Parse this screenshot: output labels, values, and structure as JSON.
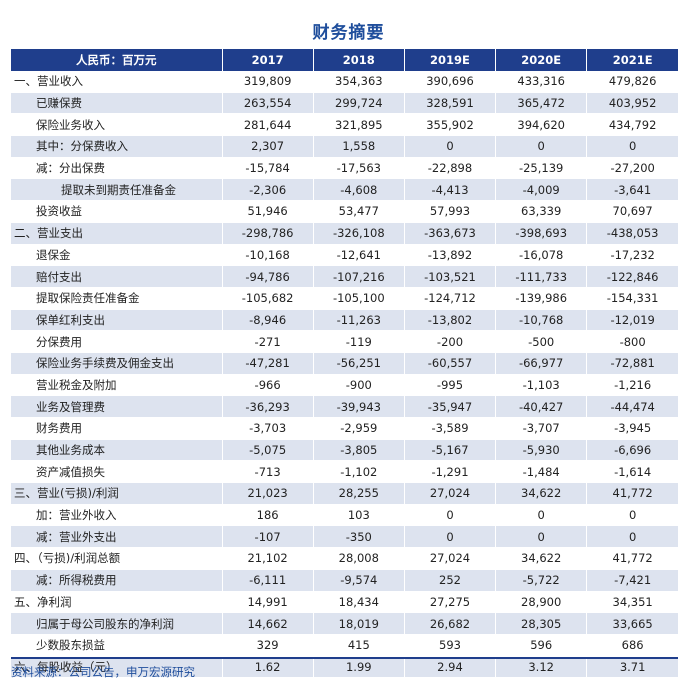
{
  "title": "财务摘要",
  "header": [
    "人民币：百万元",
    "2017",
    "2018",
    "2019E",
    "2020E",
    "2021E"
  ],
  "rows": [
    {
      "label": "一、营业收入",
      "values": [
        "319,809",
        "354,363",
        "390,696",
        "433,316",
        "479,826"
      ],
      "level": 0,
      "shaded": false
    },
    {
      "label": "已赚保费",
      "values": [
        "263,554",
        "299,724",
        "328,591",
        "365,472",
        "403,952"
      ],
      "level": 1,
      "shaded": true
    },
    {
      "label": "保险业务收入",
      "values": [
        "281,644",
        "321,895",
        "355,902",
        "394,620",
        "434,792"
      ],
      "level": 1,
      "shaded": false
    },
    {
      "label": "其中：分保费收入",
      "values": [
        "2,307",
        "1,558",
        "0",
        "0",
        "0"
      ],
      "level": 1,
      "shaded": true
    },
    {
      "label": "减：分出保费",
      "values": [
        "-15,784",
        "-17,563",
        "-22,898",
        "-25,139",
        "-27,200"
      ],
      "level": 1,
      "shaded": false
    },
    {
      "label": "提取未到期责任准备金",
      "values": [
        "-2,306",
        "-4,608",
        "-4,413",
        "-4,009",
        "-3,641"
      ],
      "level": 2,
      "shaded": true
    },
    {
      "label": "投资收益",
      "values": [
        "51,946",
        "53,477",
        "57,993",
        "63,339",
        "70,697"
      ],
      "level": 1,
      "shaded": false
    },
    {
      "label": "二、营业支出",
      "values": [
        "-298,786",
        "-326,108",
        "-363,673",
        "-398,693",
        "-438,053"
      ],
      "level": 0,
      "shaded": true
    },
    {
      "label": "退保金",
      "values": [
        "-10,168",
        "-12,641",
        "-13,892",
        "-16,078",
        "-17,232"
      ],
      "level": 1,
      "shaded": false
    },
    {
      "label": "赔付支出",
      "values": [
        "-94,786",
        "-107,216",
        "-103,521",
        "-111,733",
        "-122,846"
      ],
      "level": 1,
      "shaded": true
    },
    {
      "label": "提取保险责任准备金",
      "values": [
        "-105,682",
        "-105,100",
        "-124,712",
        "-139,986",
        "-154,331"
      ],
      "level": 1,
      "shaded": false
    },
    {
      "label": "保单红利支出",
      "values": [
        "-8,946",
        "-11,263",
        "-13,802",
        "-10,768",
        "-12,019"
      ],
      "level": 1,
      "shaded": true
    },
    {
      "label": "分保费用",
      "values": [
        "-271",
        "-119",
        "-200",
        "-500",
        "-800"
      ],
      "level": 1,
      "shaded": false
    },
    {
      "label": "保险业务手续费及佣金支出",
      "values": [
        "-47,281",
        "-56,251",
        "-60,557",
        "-66,977",
        "-72,881"
      ],
      "level": 1,
      "shaded": true
    },
    {
      "label": "营业税金及附加",
      "values": [
        "-966",
        "-900",
        "-995",
        "-1,103",
        "-1,216"
      ],
      "level": 1,
      "shaded": false
    },
    {
      "label": "业务及管理费",
      "values": [
        "-36,293",
        "-39,943",
        "-35,947",
        "-40,427",
        "-44,474"
      ],
      "level": 1,
      "shaded": true
    },
    {
      "label": "财务费用",
      "values": [
        "-3,703",
        "-2,959",
        "-3,589",
        "-3,707",
        "-3,945"
      ],
      "level": 1,
      "shaded": false
    },
    {
      "label": "其他业务成本",
      "values": [
        "-5,075",
        "-3,805",
        "-5,167",
        "-5,930",
        "-6,696"
      ],
      "level": 1,
      "shaded": true
    },
    {
      "label": "资产减值损失",
      "values": [
        "-713",
        "-1,102",
        "-1,291",
        "-1,484",
        "-1,614"
      ],
      "level": 1,
      "shaded": false
    },
    {
      "label": "三、营业(亏损)/利润",
      "values": [
        "21,023",
        "28,255",
        "27,024",
        "34,622",
        "41,772"
      ],
      "level": 0,
      "shaded": true
    },
    {
      "label": "加：营业外收入",
      "values": [
        "186",
        "103",
        "0",
        "0",
        "0"
      ],
      "level": 1,
      "shaded": false
    },
    {
      "label": "减：营业外支出",
      "values": [
        "-107",
        "-350",
        "0",
        "0",
        "0"
      ],
      "level": 1,
      "shaded": true
    },
    {
      "label": "四、（亏损)/利润总额",
      "values": [
        "21,102",
        "28,008",
        "27,024",
        "34,622",
        "41,772"
      ],
      "level": 0,
      "shaded": false
    },
    {
      "label": "减：所得税费用",
      "values": [
        "-6,111",
        "-9,574",
        "252",
        "-5,722",
        "-7,421"
      ],
      "level": 1,
      "shaded": true
    },
    {
      "label": "五、净利润",
      "values": [
        "14,991",
        "18,434",
        "27,275",
        "28,900",
        "34,351"
      ],
      "level": 0,
      "shaded": false
    },
    {
      "label": "归属于母公司股东的净利润",
      "values": [
        "14,662",
        "18,019",
        "26,682",
        "28,305",
        "33,665"
      ],
      "level": 1,
      "shaded": true
    },
    {
      "label": "少数股东损益",
      "values": [
        "329",
        "415",
        "593",
        "596",
        "686"
      ],
      "level": 1,
      "shaded": false
    },
    {
      "label": "六、每股收益（元）",
      "values": [
        "1.62",
        "1.99",
        "2.94",
        "3.12",
        "3.71"
      ],
      "level": 0,
      "shaded": true
    }
  ],
  "source": "资料来源：公司公告，申万宏源研究"
}
